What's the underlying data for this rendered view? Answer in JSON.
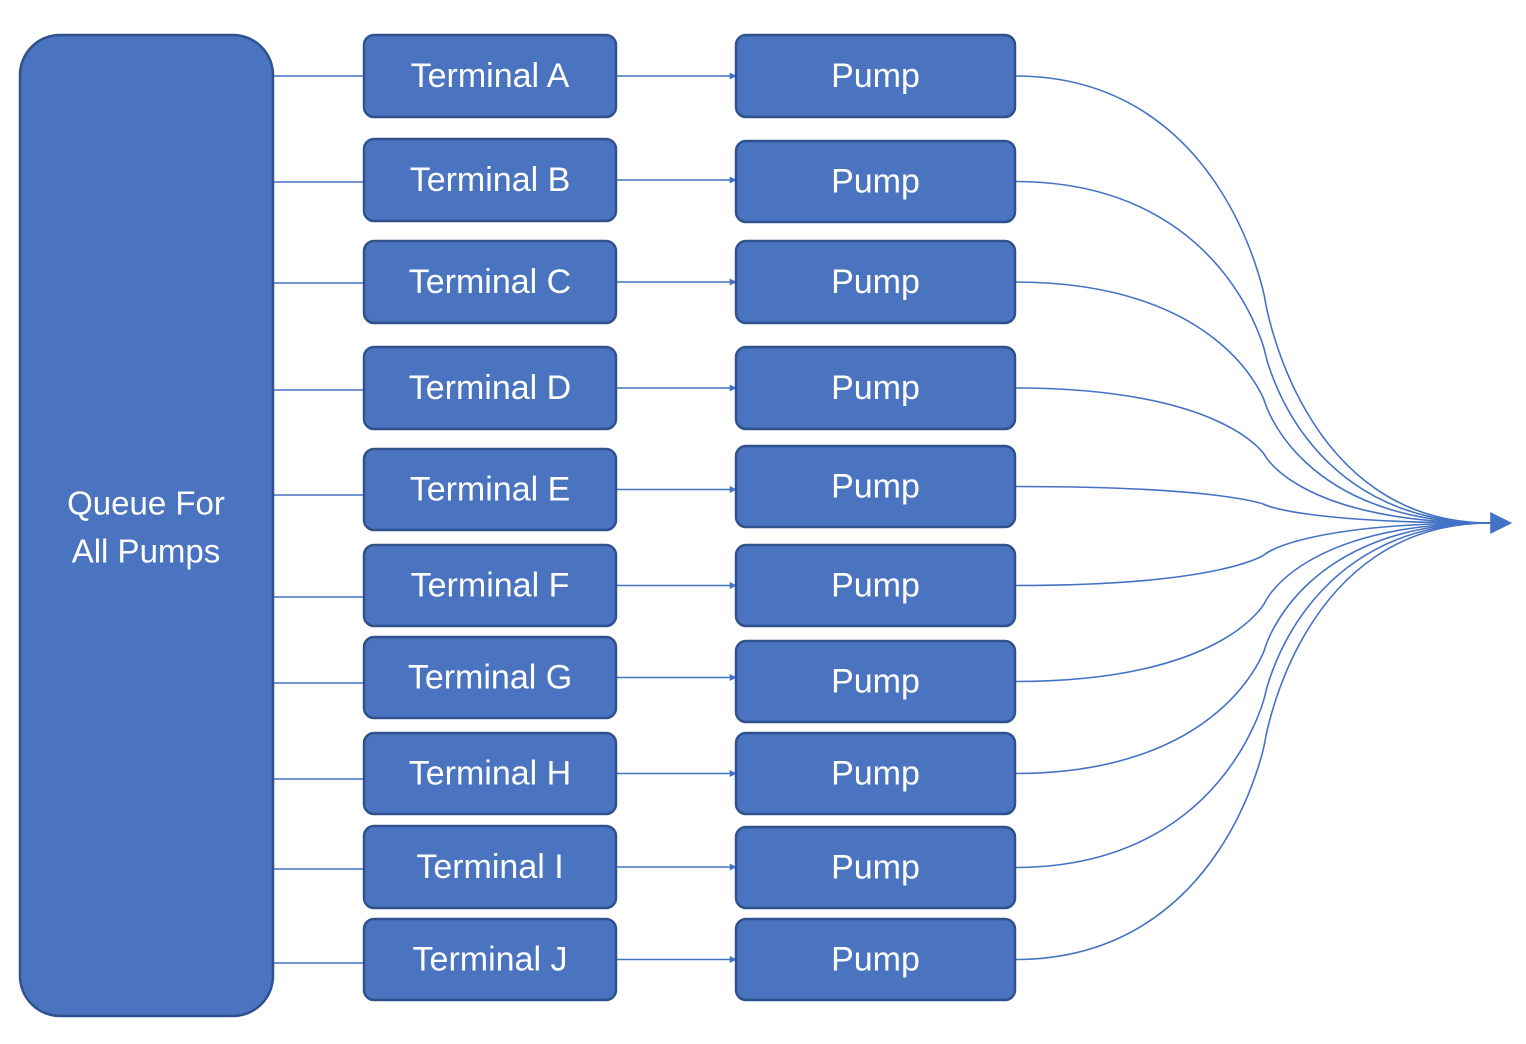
{
  "queue": {
    "label_line1": "Queue For",
    "label_line2": "All Pumps"
  },
  "rows": [
    {
      "terminal": "Terminal A",
      "pump": "Pump"
    },
    {
      "terminal": "Terminal B",
      "pump": "Pump"
    },
    {
      "terminal": "Terminal C",
      "pump": "Pump"
    },
    {
      "terminal": "Terminal D",
      "pump": "Pump"
    },
    {
      "terminal": "Terminal E",
      "pump": "Pump"
    },
    {
      "terminal": "Terminal F",
      "pump": "Pump"
    },
    {
      "terminal": "Terminal G",
      "pump": "Pump"
    },
    {
      "terminal": "Terminal H",
      "pump": "Pump"
    },
    {
      "terminal": "Terminal I",
      "pump": "Pump"
    },
    {
      "terminal": "Terminal J",
      "pump": "Pump"
    }
  ],
  "colors": {
    "box_fill": "#4a73c0",
    "box_stroke": "#2f528f",
    "connector": "#4472c4",
    "text": "#ffffff"
  }
}
